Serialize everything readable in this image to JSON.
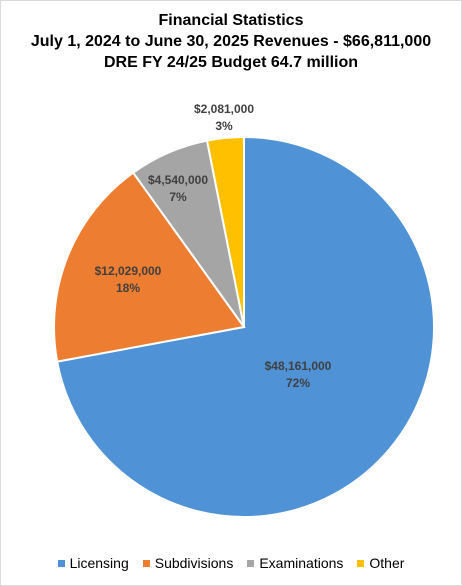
{
  "title": {
    "line1": "Financial Statistics",
    "line2": "July 1, 2024 to June 30, 2025 Revenues - $66,811,000",
    "line3": "DRE FY 24/25 Budget 64.7 million"
  },
  "chart_data": {
    "type": "pie",
    "title": "Financial Statistics\nJuly 1, 2024 to June 30, 2025 Revenues - $66,811,000\nDRE FY 24/25 Budget 64.7 million",
    "legend_position": "bottom",
    "categories": [
      "Licensing",
      "Subdivisions",
      "Examinations",
      "Other"
    ],
    "values": [
      48161000,
      12029000,
      4540000,
      2081000
    ],
    "value_labels": [
      "$48,161,000",
      "$12,029,000",
      "$4,540,000",
      "$2,081,000"
    ],
    "percent_labels": [
      "72%",
      "18%",
      "7%",
      "3%"
    ],
    "colors": [
      "#4f93d6",
      "#ed7d31",
      "#a5a5a5",
      "#ffc000"
    ],
    "label_colors": [
      "#404040",
      "#404040",
      "#404040",
      "#404040"
    ],
    "start_angle": "12 o'clock",
    "direction": "clockwise"
  }
}
